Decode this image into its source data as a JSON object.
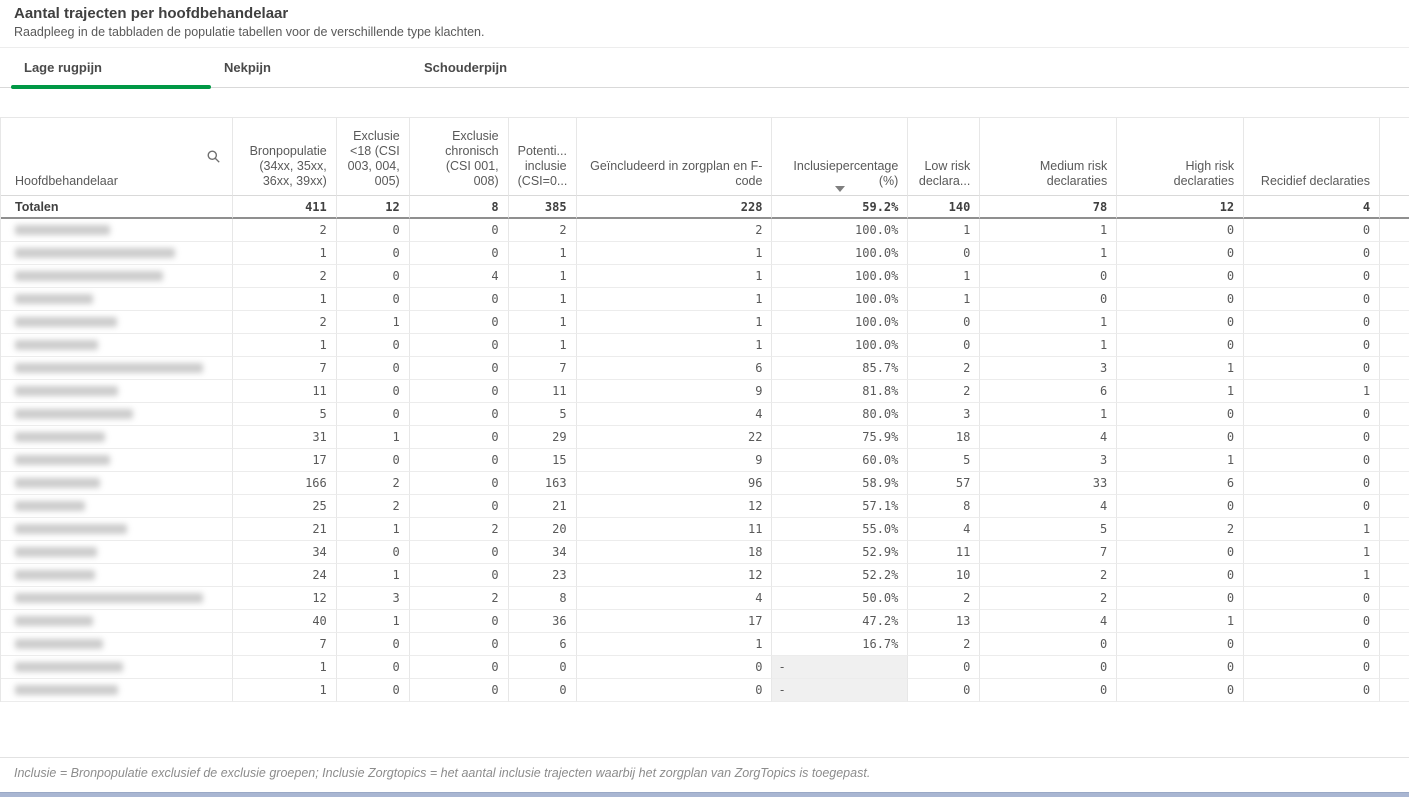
{
  "page": {
    "title": "Aantal trajecten per hoofdbehandelaar",
    "subtitle": "Raadpleeg in de tabbladen de populatie tabellen voor de verschillende type klachten.",
    "footnote": "Inclusie = Bronpopulatie exclusief de exclusie groepen; Inclusie Zorgtopics = het aantal inclusie trajecten waarbij het zorgplan van ZorgTopics is toegepast."
  },
  "colors": {
    "accent_green": "#009845",
    "bottom_scrollbar": "#a9b6d2",
    "null_cell_background": "#f0f0f0"
  },
  "tabs": [
    {
      "label": "Lage rugpijn",
      "active": true
    },
    {
      "label": "Nekpijn",
      "active": false
    },
    {
      "label": "Schouderpijn",
      "active": false
    }
  ],
  "table": {
    "columns": [
      "Hoofdbehandelaar",
      "Bronpopulatie (34xx, 35xx, 36xx, 39xx)",
      "Exclusie <18 (CSI 003, 004, 005)",
      "Exclusie chronisch (CSI 001, 008)",
      "Potenti... inclusie (CSI=0...",
      "Geïncludeerd in zorgplan en F-code",
      "Inclusiepercentage (%)",
      "Low risk declara...",
      "Medium risk declaraties",
      "High risk declaraties",
      "Recidief declaraties",
      ""
    ],
    "icons": {
      "first_column": "search-icon",
      "sort": "sort-descending-icon"
    },
    "sort": {
      "column": "Inclusiepercentage (%)",
      "direction": "descending"
    },
    "totals": {
      "label": "Totalen",
      "values": [
        411,
        12,
        8,
        385,
        228,
        "59.2%",
        140,
        78,
        12,
        4
      ]
    },
    "null_display": "-",
    "rows": [
      {
        "name_redacted": true,
        "blur_width": 95,
        "values": [
          2,
          0,
          0,
          2,
          2,
          "100.0%",
          1,
          1,
          0,
          0
        ]
      },
      {
        "name_redacted": true,
        "blur_width": 160,
        "values": [
          1,
          0,
          0,
          1,
          1,
          "100.0%",
          0,
          1,
          0,
          0
        ]
      },
      {
        "name_redacted": true,
        "blur_width": 148,
        "values": [
          2,
          0,
          4,
          1,
          1,
          "100.0%",
          1,
          0,
          0,
          0
        ]
      },
      {
        "name_redacted": true,
        "blur_width": 78,
        "values": [
          1,
          0,
          0,
          1,
          1,
          "100.0%",
          1,
          0,
          0,
          0
        ]
      },
      {
        "name_redacted": true,
        "blur_width": 102,
        "values": [
          2,
          1,
          0,
          1,
          1,
          "100.0%",
          0,
          1,
          0,
          0
        ]
      },
      {
        "name_redacted": true,
        "blur_width": 83,
        "values": [
          1,
          0,
          0,
          1,
          1,
          "100.0%",
          0,
          1,
          0,
          0
        ]
      },
      {
        "name_redacted": true,
        "blur_width": 188,
        "values": [
          7,
          0,
          0,
          7,
          6,
          "85.7%",
          2,
          3,
          1,
          0
        ]
      },
      {
        "name_redacted": true,
        "blur_width": 103,
        "values": [
          11,
          0,
          0,
          11,
          9,
          "81.8%",
          2,
          6,
          1,
          1
        ]
      },
      {
        "name_redacted": true,
        "blur_width": 118,
        "values": [
          5,
          0,
          0,
          5,
          4,
          "80.0%",
          3,
          1,
          0,
          0
        ]
      },
      {
        "name_redacted": true,
        "blur_width": 90,
        "values": [
          31,
          1,
          0,
          29,
          22,
          "75.9%",
          18,
          4,
          0,
          0
        ]
      },
      {
        "name_redacted": true,
        "blur_width": 95,
        "values": [
          17,
          0,
          0,
          15,
          9,
          "60.0%",
          5,
          3,
          1,
          0
        ]
      },
      {
        "name_redacted": true,
        "blur_width": 85,
        "values": [
          166,
          2,
          0,
          163,
          96,
          "58.9%",
          57,
          33,
          6,
          0
        ]
      },
      {
        "name_redacted": true,
        "blur_width": 70,
        "values": [
          25,
          2,
          0,
          21,
          12,
          "57.1%",
          8,
          4,
          0,
          0
        ]
      },
      {
        "name_redacted": true,
        "blur_width": 112,
        "values": [
          21,
          1,
          2,
          20,
          11,
          "55.0%",
          4,
          5,
          2,
          1
        ]
      },
      {
        "name_redacted": true,
        "blur_width": 82,
        "values": [
          34,
          0,
          0,
          34,
          18,
          "52.9%",
          11,
          7,
          0,
          1
        ]
      },
      {
        "name_redacted": true,
        "blur_width": 80,
        "values": [
          24,
          1,
          0,
          23,
          12,
          "52.2%",
          10,
          2,
          0,
          1
        ]
      },
      {
        "name_redacted": true,
        "blur_width": 188,
        "values": [
          12,
          3,
          2,
          8,
          4,
          "50.0%",
          2,
          2,
          0,
          0
        ]
      },
      {
        "name_redacted": true,
        "blur_width": 78,
        "values": [
          40,
          1,
          0,
          36,
          17,
          "47.2%",
          13,
          4,
          1,
          0
        ]
      },
      {
        "name_redacted": true,
        "blur_width": 88,
        "values": [
          7,
          0,
          0,
          6,
          1,
          "16.7%",
          2,
          0,
          0,
          0
        ]
      },
      {
        "name_redacted": true,
        "blur_width": 108,
        "values": [
          1,
          0,
          0,
          0,
          0,
          "-",
          0,
          0,
          0,
          0
        ]
      },
      {
        "name_redacted": true,
        "blur_width": 103,
        "values": [
          1,
          0,
          0,
          0,
          0,
          "-",
          0,
          0,
          0,
          0
        ]
      }
    ]
  }
}
